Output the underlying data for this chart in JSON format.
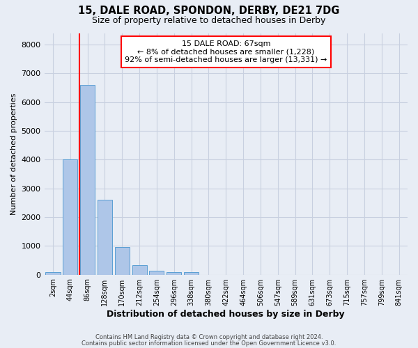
{
  "title_line1": "15, DALE ROAD, SPONDON, DERBY, DE21 7DG",
  "title_line2": "Size of property relative to detached houses in Derby",
  "xlabel": "Distribution of detached houses by size in Derby",
  "ylabel": "Number of detached properties",
  "footer_line1": "Contains HM Land Registry data © Crown copyright and database right 2024.",
  "footer_line2": "Contains public sector information licensed under the Open Government Licence v3.0.",
  "bar_labels": [
    "2sqm",
    "44sqm",
    "86sqm",
    "128sqm",
    "170sqm",
    "212sqm",
    "254sqm",
    "296sqm",
    "338sqm",
    "380sqm",
    "422sqm",
    "464sqm",
    "506sqm",
    "547sqm",
    "589sqm",
    "631sqm",
    "673sqm",
    "715sqm",
    "757sqm",
    "799sqm",
    "841sqm"
  ],
  "bar_heights": [
    75,
    4000,
    6600,
    2600,
    950,
    320,
    130,
    80,
    80,
    0,
    0,
    0,
    0,
    0,
    0,
    0,
    0,
    0,
    0,
    0,
    0
  ],
  "bar_color": "#aec6e8",
  "bar_edgecolor": "#5a9fd4",
  "grid_color": "#c8d0e0",
  "background_color": "#e8edf5",
  "red_line_x": 1.54,
  "annotation_line1": "15 DALE ROAD: 67sqm",
  "annotation_line2": "← 8% of detached houses are smaller (1,228)",
  "annotation_line3": "92% of semi-detached houses are larger (13,331) →",
  "annotation_box_color": "white",
  "annotation_box_edgecolor": "red",
  "ylim": [
    0,
    8400
  ],
  "yticks": [
    0,
    1000,
    2000,
    3000,
    4000,
    5000,
    6000,
    7000,
    8000
  ]
}
